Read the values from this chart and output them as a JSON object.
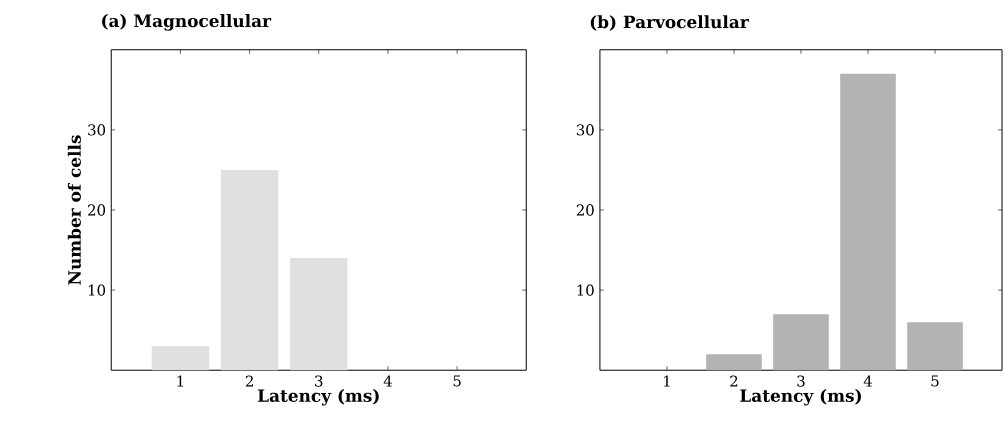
{
  "chart_data": [
    {
      "type": "bar",
      "title": "(a) Magnocellular",
      "xlabel": "Latency (ms)",
      "ylabel": "Number of cells",
      "x": [
        1,
        2,
        3,
        4,
        5
      ],
      "values": [
        3,
        25,
        14,
        0,
        0
      ],
      "color": "#e0e0e0",
      "xlim": [
        0,
        6
      ],
      "ylim": [
        0,
        40
      ],
      "xticks": [
        1,
        2,
        3,
        4,
        5
      ],
      "yticks": [
        10,
        20,
        30
      ]
    },
    {
      "type": "bar",
      "title": "(b) Parvocellular",
      "xlabel": "Latency (ms)",
      "x": [
        1,
        2,
        3,
        4,
        5
      ],
      "values": [
        0,
        2,
        7,
        37,
        6
      ],
      "color": "#b3b3b3",
      "xlim": [
        0,
        6
      ],
      "ylim": [
        0,
        40
      ],
      "xticks": [
        1,
        2,
        3,
        4,
        5
      ],
      "yticks": [
        10,
        20,
        30
      ]
    }
  ]
}
